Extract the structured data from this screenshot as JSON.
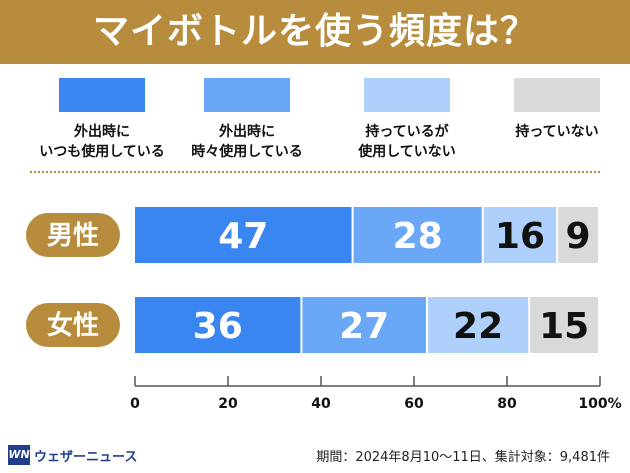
{
  "header": {
    "title": "マイボトルを使う頻度は？"
  },
  "chart_data": {
    "type": "bar",
    "orientation": "horizontal",
    "stacked": true,
    "title": "マイボトルを使う頻度は？",
    "categories": [
      "男性",
      "女性"
    ],
    "series": [
      {
        "name": "外出時に\nいつも使用している",
        "values": [
          47,
          36
        ],
        "color": "#3a86f0",
        "label_color": "#ffffff"
      },
      {
        "name": "外出時に\n時々使用している",
        "values": [
          28,
          27
        ],
        "color": "#6aa7f6",
        "label_color": "#ffffff"
      },
      {
        "name": "持っているが\n使用していない",
        "values": [
          16,
          22
        ],
        "color": "#aed0fb",
        "label_color": "#111111"
      },
      {
        "name": "持っていない",
        "values": [
          9,
          15
        ],
        "color": "#d9d9d9",
        "label_color": "#111111"
      }
    ],
    "xlim": [
      0,
      100
    ],
    "xticks": [
      "0",
      "20",
      "40",
      "60",
      "80",
      "100%"
    ],
    "category_badge_color": "#b78d3d"
  },
  "footer": {
    "logo": "WN",
    "brand": "ウェザーニュース",
    "note": "期間：2024年8月10〜11日、集計対象：9,481件"
  }
}
